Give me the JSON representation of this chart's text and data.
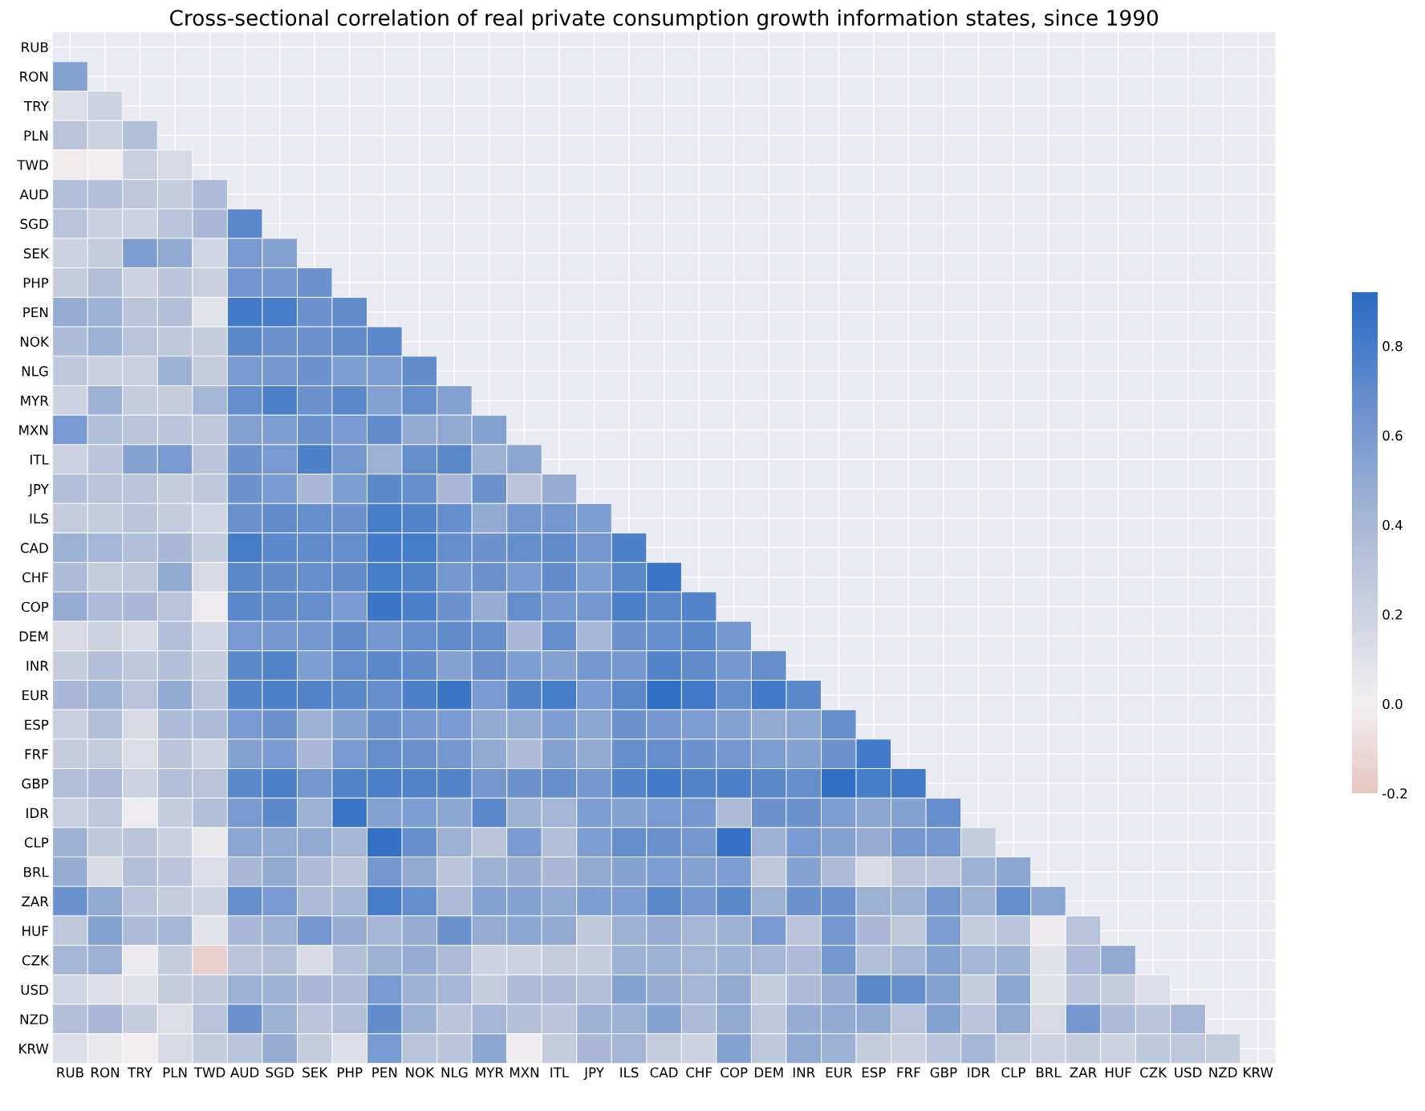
{
  "chart_data": {
    "type": "heatmap",
    "title": "Cross-sectional correlation of real private consumption growth information states, since 1990",
    "categories": [
      "RUB",
      "RON",
      "TRY",
      "PLN",
      "TWD",
      "AUD",
      "SGD",
      "SEK",
      "PHP",
      "PEN",
      "NOK",
      "NLG",
      "MYR",
      "MXN",
      "ITL",
      "JPY",
      "ILS",
      "CAD",
      "CHF",
      "COP",
      "DEM",
      "INR",
      "EUR",
      "ESP",
      "FRF",
      "GBP",
      "IDR",
      "CLP",
      "BRL",
      "ZAR",
      "HUF",
      "CZK",
      "USD",
      "NZD",
      "KRW"
    ],
    "y_categories": [
      "RUB",
      "RON",
      "TRY",
      "PLN",
      "TWD",
      "AUD",
      "SGD",
      "SEK",
      "PHP",
      "PEN",
      "NOK",
      "NLG",
      "MYR",
      "MXN",
      "ITL",
      "JPY",
      "ILS",
      "CAD",
      "CHF",
      "COP",
      "DEM",
      "INR",
      "EUR",
      "ESP",
      "FRF",
      "GBP",
      "IDR",
      "CLP",
      "BRL",
      "ZAR",
      "HUF",
      "CZK",
      "USD",
      "NZD",
      "KRW"
    ],
    "clim": [
      -0.2,
      0.92
    ],
    "cticks": [
      {
        "value": -0.2,
        "label": "-0.2"
      },
      {
        "value": 0,
        "label": "0.0"
      },
      {
        "value": 0.2,
        "label": "0.2"
      },
      {
        "value": 0.4,
        "label": "0.4"
      },
      {
        "value": 0.6,
        "label": "0.6"
      },
      {
        "value": 0.8,
        "label": "0.8"
      }
    ],
    "grid": true,
    "cells": [
      [
        null,
        null,
        null,
        null,
        null,
        null,
        null,
        null,
        null,
        null,
        null,
        null,
        null,
        null,
        null,
        null,
        null,
        null,
        null,
        null,
        null,
        null,
        null,
        null,
        null,
        null,
        null,
        null,
        null,
        null,
        null,
        null,
        null,
        null,
        null
      ],
      [
        0.55,
        null,
        null,
        null,
        null,
        null,
        null,
        null,
        null,
        null,
        null,
        null,
        null,
        null,
        null,
        null,
        null,
        null,
        null,
        null,
        null,
        null,
        null,
        null,
        null,
        null,
        null,
        null,
        null,
        null,
        null,
        null,
        null,
        null,
        null
      ],
      [
        0.12,
        0.2,
        null,
        null,
        null,
        null,
        null,
        null,
        null,
        null,
        null,
        null,
        null,
        null,
        null,
        null,
        null,
        null,
        null,
        null,
        null,
        null,
        null,
        null,
        null,
        null,
        null,
        null,
        null,
        null,
        null,
        null,
        null,
        null,
        null
      ],
      [
        0.3,
        0.2,
        0.35,
        null,
        null,
        null,
        null,
        null,
        null,
        null,
        null,
        null,
        null,
        null,
        null,
        null,
        null,
        null,
        null,
        null,
        null,
        null,
        null,
        null,
        null,
        null,
        null,
        null,
        null,
        null,
        null,
        null,
        null,
        null,
        null
      ],
      [
        -0.02,
        -0.01,
        0.22,
        0.15,
        null,
        null,
        null,
        null,
        null,
        null,
        null,
        null,
        null,
        null,
        null,
        null,
        null,
        null,
        null,
        null,
        null,
        null,
        null,
        null,
        null,
        null,
        null,
        null,
        null,
        null,
        null,
        null,
        null,
        null,
        null
      ],
      [
        0.35,
        0.35,
        0.28,
        0.25,
        0.38,
        null,
        null,
        null,
        null,
        null,
        null,
        null,
        null,
        null,
        null,
        null,
        null,
        null,
        null,
        null,
        null,
        null,
        null,
        null,
        null,
        null,
        null,
        null,
        null,
        null,
        null,
        null,
        null,
        null,
        null
      ],
      [
        0.32,
        0.22,
        0.2,
        0.32,
        0.4,
        0.72,
        null,
        null,
        null,
        null,
        null,
        null,
        null,
        null,
        null,
        null,
        null,
        null,
        null,
        null,
        null,
        null,
        null,
        null,
        null,
        null,
        null,
        null,
        null,
        null,
        null,
        null,
        null,
        null,
        null
      ],
      [
        0.2,
        0.25,
        0.58,
        0.5,
        0.18,
        0.6,
        0.55,
        null,
        null,
        null,
        null,
        null,
        null,
        null,
        null,
        null,
        null,
        null,
        null,
        null,
        null,
        null,
        null,
        null,
        null,
        null,
        null,
        null,
        null,
        null,
        null,
        null,
        null,
        null,
        null
      ],
      [
        0.25,
        0.35,
        0.2,
        0.3,
        0.22,
        0.63,
        0.62,
        0.65,
        null,
        null,
        null,
        null,
        null,
        null,
        null,
        null,
        null,
        null,
        null,
        null,
        null,
        null,
        null,
        null,
        null,
        null,
        null,
        null,
        null,
        null,
        null,
        null,
        null,
        null,
        null
      ],
      [
        0.48,
        0.45,
        0.3,
        0.35,
        0.08,
        0.82,
        0.8,
        0.65,
        0.7,
        null,
        null,
        null,
        null,
        null,
        null,
        null,
        null,
        null,
        null,
        null,
        null,
        null,
        null,
        null,
        null,
        null,
        null,
        null,
        null,
        null,
        null,
        null,
        null,
        null,
        null
      ],
      [
        0.38,
        0.45,
        0.32,
        0.28,
        0.25,
        0.72,
        0.65,
        0.65,
        0.7,
        0.72,
        null,
        null,
        null,
        null,
        null,
        null,
        null,
        null,
        null,
        null,
        null,
        null,
        null,
        null,
        null,
        null,
        null,
        null,
        null,
        null,
        null,
        null,
        null,
        null,
        null
      ],
      [
        0.28,
        0.22,
        0.22,
        0.45,
        0.25,
        0.6,
        0.62,
        0.65,
        0.58,
        0.58,
        0.7,
        null,
        null,
        null,
        null,
        null,
        null,
        null,
        null,
        null,
        null,
        null,
        null,
        null,
        null,
        null,
        null,
        null,
        null,
        null,
        null,
        null,
        null,
        null,
        null
      ],
      [
        0.2,
        0.45,
        0.25,
        0.25,
        0.42,
        0.68,
        0.78,
        0.65,
        0.72,
        0.55,
        0.68,
        0.55,
        null,
        null,
        null,
        null,
        null,
        null,
        null,
        null,
        null,
        null,
        null,
        null,
        null,
        null,
        null,
        null,
        null,
        null,
        null,
        null,
        null,
        null,
        null
      ],
      [
        0.6,
        0.35,
        0.32,
        0.3,
        0.28,
        0.55,
        0.58,
        0.65,
        0.6,
        0.7,
        0.5,
        0.5,
        0.55,
        null,
        null,
        null,
        null,
        null,
        null,
        null,
        null,
        null,
        null,
        null,
        null,
        null,
        null,
        null,
        null,
        null,
        null,
        null,
        null,
        null,
        null
      ],
      [
        0.2,
        0.3,
        0.55,
        0.6,
        0.3,
        0.65,
        0.6,
        0.78,
        0.62,
        0.45,
        0.68,
        0.72,
        0.45,
        0.52,
        null,
        null,
        null,
        null,
        null,
        null,
        null,
        null,
        null,
        null,
        null,
        null,
        null,
        null,
        null,
        null,
        null,
        null,
        null,
        null,
        null
      ],
      [
        0.35,
        0.32,
        0.3,
        0.25,
        0.28,
        0.65,
        0.6,
        0.4,
        0.58,
        0.72,
        0.68,
        0.4,
        0.65,
        0.3,
        0.48,
        null,
        null,
        null,
        null,
        null,
        null,
        null,
        null,
        null,
        null,
        null,
        null,
        null,
        null,
        null,
        null,
        null,
        null,
        null,
        null
      ],
      [
        0.25,
        0.25,
        0.3,
        0.25,
        0.18,
        0.65,
        0.7,
        0.68,
        0.65,
        0.8,
        0.75,
        0.68,
        0.5,
        0.62,
        0.62,
        0.58,
        null,
        null,
        null,
        null,
        null,
        null,
        null,
        null,
        null,
        null,
        null,
        null,
        null,
        null,
        null,
        null,
        null,
        null,
        null
      ],
      [
        0.45,
        0.42,
        0.35,
        0.4,
        0.25,
        0.8,
        0.72,
        0.7,
        0.68,
        0.82,
        0.8,
        0.68,
        0.65,
        0.68,
        0.7,
        0.62,
        0.78,
        null,
        null,
        null,
        null,
        null,
        null,
        null,
        null,
        null,
        null,
        null,
        null,
        null,
        null,
        null,
        null,
        null,
        null
      ],
      [
        0.38,
        0.25,
        0.28,
        0.5,
        0.15,
        0.72,
        0.7,
        0.68,
        0.7,
        0.8,
        0.75,
        0.62,
        0.65,
        0.6,
        0.7,
        0.58,
        0.72,
        0.85,
        null,
        null,
        null,
        null,
        null,
        null,
        null,
        null,
        null,
        null,
        null,
        null,
        null,
        null,
        null,
        null,
        null
      ],
      [
        0.48,
        0.38,
        0.4,
        0.32,
        0.03,
        0.72,
        0.7,
        0.68,
        0.6,
        0.85,
        0.78,
        0.65,
        0.48,
        0.68,
        0.62,
        0.62,
        0.78,
        0.72,
        0.75,
        null,
        null,
        null,
        null,
        null,
        null,
        null,
        null,
        null,
        null,
        null,
        null,
        null,
        null,
        null,
        null
      ],
      [
        0.15,
        0.2,
        0.15,
        0.35,
        0.18,
        0.6,
        0.62,
        0.62,
        0.7,
        0.62,
        0.68,
        0.7,
        0.68,
        0.4,
        0.68,
        0.42,
        0.65,
        0.68,
        0.72,
        0.62,
        null,
        null,
        null,
        null,
        null,
        null,
        null,
        null,
        null,
        null,
        null,
        null,
        null,
        null,
        null
      ],
      [
        0.25,
        0.35,
        0.28,
        0.35,
        0.25,
        0.72,
        0.75,
        0.58,
        0.68,
        0.72,
        0.7,
        0.55,
        0.65,
        0.58,
        0.55,
        0.62,
        0.62,
        0.75,
        0.7,
        0.62,
        0.68,
        null,
        null,
        null,
        null,
        null,
        null,
        null,
        null,
        null,
        null,
        null,
        null,
        null,
        null
      ],
      [
        0.4,
        0.45,
        0.32,
        0.5,
        0.3,
        0.75,
        0.78,
        0.75,
        0.72,
        0.68,
        0.78,
        0.85,
        0.6,
        0.75,
        0.8,
        0.6,
        0.72,
        0.9,
        0.82,
        0.68,
        0.82,
        0.72,
        null,
        null,
        null,
        null,
        null,
        null,
        null,
        null,
        null,
        null,
        null,
        null,
        null
      ],
      [
        0.22,
        0.35,
        0.15,
        0.38,
        0.38,
        0.6,
        0.65,
        0.45,
        0.55,
        0.65,
        0.62,
        0.6,
        0.5,
        0.5,
        0.58,
        0.52,
        0.65,
        0.62,
        0.58,
        0.55,
        0.5,
        0.52,
        0.68,
        null,
        null,
        null,
        null,
        null,
        null,
        null,
        null,
        null,
        null,
        null,
        null
      ],
      [
        0.25,
        0.25,
        0.12,
        0.3,
        0.2,
        0.55,
        0.6,
        0.4,
        0.6,
        0.68,
        0.65,
        0.62,
        0.5,
        0.38,
        0.55,
        0.5,
        0.68,
        0.68,
        0.65,
        0.62,
        0.58,
        0.55,
        0.65,
        0.82,
        null,
        null,
        null,
        null,
        null,
        null,
        null,
        null,
        null,
        null,
        null
      ],
      [
        0.35,
        0.38,
        0.2,
        0.35,
        0.32,
        0.72,
        0.78,
        0.62,
        0.75,
        0.78,
        0.75,
        0.75,
        0.62,
        0.65,
        0.68,
        0.62,
        0.75,
        0.82,
        0.75,
        0.78,
        0.72,
        0.68,
        0.9,
        0.8,
        0.82,
        null,
        null,
        null,
        null,
        null,
        null,
        null,
        null,
        null,
        null
      ],
      [
        0.22,
        0.28,
        0.03,
        0.25,
        0.35,
        0.6,
        0.72,
        0.45,
        0.85,
        0.55,
        0.58,
        0.52,
        0.72,
        0.45,
        0.42,
        0.58,
        0.55,
        0.6,
        0.62,
        0.38,
        0.65,
        0.65,
        0.58,
        0.52,
        0.55,
        0.68,
        null,
        null,
        null,
        null,
        null,
        null,
        null,
        null,
        null
      ],
      [
        0.45,
        0.28,
        0.3,
        0.22,
        0.06,
        0.52,
        0.5,
        0.5,
        0.42,
        0.88,
        0.68,
        0.45,
        0.3,
        0.6,
        0.35,
        0.58,
        0.68,
        0.65,
        0.62,
        0.88,
        0.45,
        0.6,
        0.55,
        0.48,
        0.62,
        0.62,
        0.25,
        null,
        null,
        null,
        null,
        null,
        null,
        null,
        null
      ],
      [
        0.48,
        0.15,
        0.35,
        0.3,
        0.12,
        0.4,
        0.5,
        0.38,
        0.3,
        0.62,
        0.5,
        0.3,
        0.45,
        0.48,
        0.4,
        0.5,
        0.55,
        0.58,
        0.55,
        0.58,
        0.28,
        0.55,
        0.38,
        0.15,
        0.3,
        0.3,
        0.45,
        0.52,
        null,
        null,
        null,
        null,
        null,
        null,
        null
      ],
      [
        0.65,
        0.5,
        0.3,
        0.25,
        0.2,
        0.68,
        0.6,
        0.38,
        0.42,
        0.8,
        0.68,
        0.38,
        0.55,
        0.55,
        0.5,
        0.58,
        0.58,
        0.72,
        0.62,
        0.72,
        0.45,
        0.65,
        0.65,
        0.45,
        0.45,
        0.62,
        0.45,
        0.68,
        0.52,
        null,
        null,
        null,
        null,
        null,
        null
      ],
      [
        0.28,
        0.55,
        0.38,
        0.42,
        0.08,
        0.4,
        0.45,
        0.62,
        0.48,
        0.42,
        0.48,
        0.65,
        0.48,
        0.52,
        0.5,
        0.28,
        0.45,
        0.48,
        0.42,
        0.45,
        0.6,
        0.3,
        0.62,
        0.4,
        0.28,
        0.58,
        0.25,
        0.3,
        0.04,
        0.32,
        null,
        null,
        null,
        null,
        null
      ],
      [
        0.42,
        0.45,
        0.04,
        0.25,
        -0.15,
        0.3,
        0.35,
        0.15,
        0.35,
        0.45,
        0.48,
        0.38,
        0.2,
        0.2,
        0.25,
        0.25,
        0.45,
        0.45,
        0.42,
        0.45,
        0.42,
        0.38,
        0.62,
        0.35,
        0.42,
        0.55,
        0.42,
        0.45,
        0.1,
        0.38,
        0.5,
        null,
        null,
        null,
        null
      ],
      [
        0.18,
        0.12,
        0.1,
        0.25,
        0.28,
        0.45,
        0.45,
        0.4,
        0.38,
        0.6,
        0.45,
        0.42,
        0.25,
        0.38,
        0.38,
        0.35,
        0.55,
        0.48,
        0.42,
        0.5,
        0.25,
        0.38,
        0.48,
        0.72,
        0.68,
        0.55,
        0.25,
        0.52,
        0.1,
        0.3,
        0.25,
        0.12,
        null,
        null,
        null
      ],
      [
        0.35,
        0.4,
        0.25,
        0.12,
        0.32,
        0.65,
        0.45,
        0.3,
        0.35,
        0.7,
        0.45,
        0.3,
        0.42,
        0.35,
        0.3,
        0.45,
        0.45,
        0.55,
        0.38,
        0.5,
        0.28,
        0.48,
        0.5,
        0.5,
        0.32,
        0.55,
        0.3,
        0.5,
        0.15,
        0.62,
        0.38,
        0.3,
        0.42,
        null,
        null
      ],
      [
        0.12,
        0.05,
        0.0,
        0.15,
        0.25,
        0.3,
        0.48,
        0.25,
        0.12,
        0.6,
        0.32,
        0.3,
        0.52,
        0.02,
        0.25,
        0.4,
        0.42,
        0.25,
        0.2,
        0.55,
        0.28,
        0.5,
        0.45,
        0.25,
        0.22,
        0.3,
        0.42,
        0.25,
        0.2,
        0.25,
        0.2,
        0.28,
        0.28,
        0.25,
        null
      ]
    ]
  }
}
